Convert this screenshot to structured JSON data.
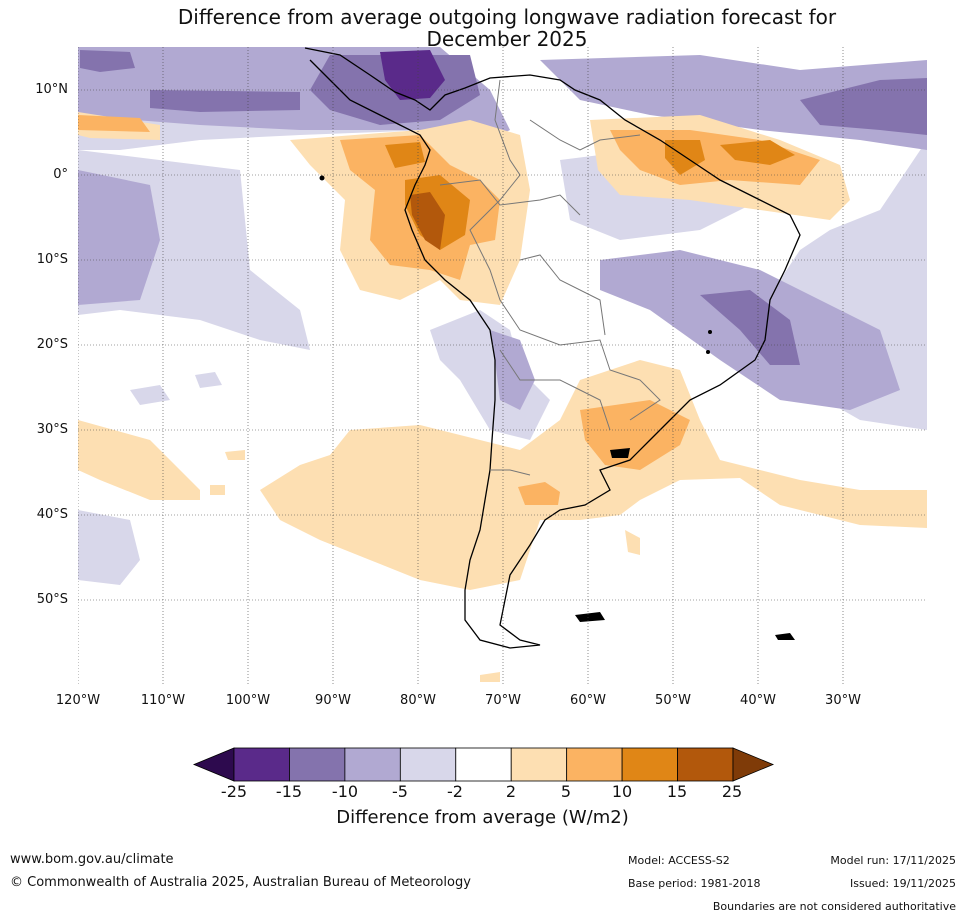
{
  "title": {
    "line1": "Difference from average outgoing longwave radiation forecast for",
    "line2": "December 2025"
  },
  "map": {
    "region": "South America",
    "latitude_labels": [
      "10°N",
      "0°",
      "10°S",
      "20°S",
      "30°S",
      "40°S",
      "50°S"
    ],
    "longitude_labels": [
      "120°W",
      "110°W",
      "100°W",
      "90°W",
      "80°W",
      "70°W",
      "60°W",
      "50°W",
      "40°W",
      "30°W"
    ]
  },
  "colorbar": {
    "ticks": [
      "-25",
      "-15",
      "-10",
      "-5",
      "-2",
      "2",
      "5",
      "10",
      "15",
      "25"
    ],
    "colors": [
      "#2d0a4e",
      "#5a2a8a",
      "#8473ad",
      "#b1a9d2",
      "#d8d7ea",
      "#ffffff",
      "#fddfb2",
      "#fbb362",
      "#e08616",
      "#b2580c",
      "#7f3b08"
    ],
    "label": "Difference from average (W/m2)"
  },
  "footer": {
    "website": "www.bom.gov.au/climate",
    "copyright": "© Commonwealth of Australia 2025, Australian Bureau of Meteorology",
    "model": "Model: ACCESS-S2",
    "base_period": "Base period: 1981-2018",
    "model_run": "Model run: 17/11/2025",
    "issued": "Issued: 19/11/2025",
    "disclaimer": "Boundaries are not considered authoritative"
  }
}
